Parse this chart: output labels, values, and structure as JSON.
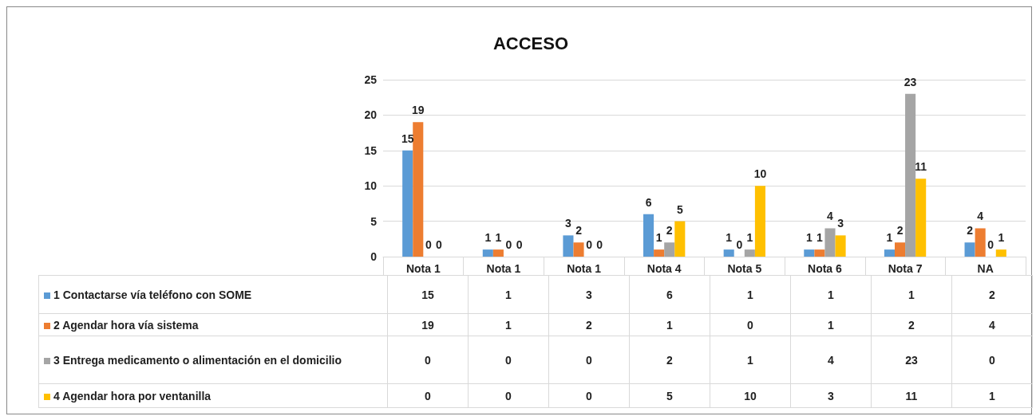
{
  "chart_data": {
    "type": "bar",
    "title": "ACCESO",
    "categories": [
      "Nota 1",
      "Nota 1",
      "Nota 1",
      "Nota 4",
      "Nota 5",
      "Nota 6",
      "Nota 7",
      "NA"
    ],
    "series": [
      {
        "name": "1 Contactarse vía teléfono con SOME",
        "color": "#5b9bd5",
        "values": [
          15,
          1,
          3,
          6,
          1,
          1,
          1,
          2
        ],
        "value_labels": [
          "15",
          "1",
          "3",
          "6",
          "1",
          "1",
          "1",
          "2"
        ]
      },
      {
        "name": "2 Agendar hora vía sistema",
        "color": "#ed7d31",
        "values": [
          19,
          1,
          2,
          1,
          0,
          1,
          2,
          4
        ],
        "value_labels": [
          "19",
          "1",
          "2",
          "1",
          "0",
          "1",
          "2",
          "4"
        ]
      },
      {
        "name": "3 Entrega medicamento o alimentación en el domicilio",
        "color": "#a5a5a5",
        "values": [
          0,
          0,
          0,
          2,
          1,
          4,
          23,
          0
        ],
        "value_labels": [
          "0",
          "0",
          "0",
          "2",
          "1",
          "4",
          "23",
          "0"
        ]
      },
      {
        "name": "4 Agendar hora por ventanilla",
        "color": "#ffc000",
        "values": [
          0,
          0,
          0,
          5,
          10,
          3,
          11,
          1
        ],
        "value_labels": [
          "0",
          "0",
          "0",
          "5",
          "10",
          "3",
          "11",
          "1"
        ]
      }
    ],
    "ylim": [
      0,
      25
    ],
    "yticks": [
      0,
      5,
      10,
      15,
      20,
      25
    ],
    "grid": "y",
    "legend": "bottom"
  }
}
